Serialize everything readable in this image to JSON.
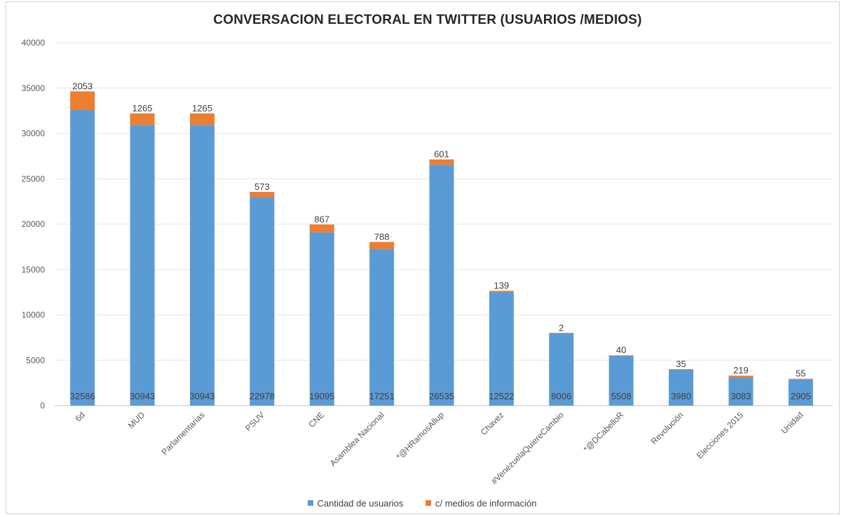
{
  "chart_data": {
    "type": "bar",
    "stacked": true,
    "title": "CONVERSACION ELECTORAL EN TWITTER (USUARIOS /MEDIOS)",
    "categories": [
      "6d",
      "MUD",
      "Parlamentarias",
      "PSUV",
      "CNE",
      "Asamblea Nacional",
      "*@HRamosAllup",
      "Chavez",
      "#VenezuelaQuiereCambio",
      "*@DCabelloR",
      "Revolución",
      "Elecciones 2015",
      "Unidad"
    ],
    "series": [
      {
        "name": "Cantidad de usuarios",
        "color": "#5b9bd5",
        "values": [
          32586,
          30943,
          30943,
          22978,
          19095,
          17251,
          26535,
          12522,
          8006,
          5508,
          3980,
          3083,
          2905
        ]
      },
      {
        "name": "c/ medios de información",
        "color": "#ed7d31",
        "values": [
          2053,
          1265,
          1265,
          573,
          867,
          788,
          601,
          139,
          2,
          40,
          35,
          219,
          55
        ]
      }
    ],
    "ylim": [
      0,
      40000
    ],
    "yticks": [
      0,
      5000,
      10000,
      15000,
      20000,
      25000,
      30000,
      35000,
      40000
    ],
    "grid": true,
    "legend_position": "bottom"
  }
}
